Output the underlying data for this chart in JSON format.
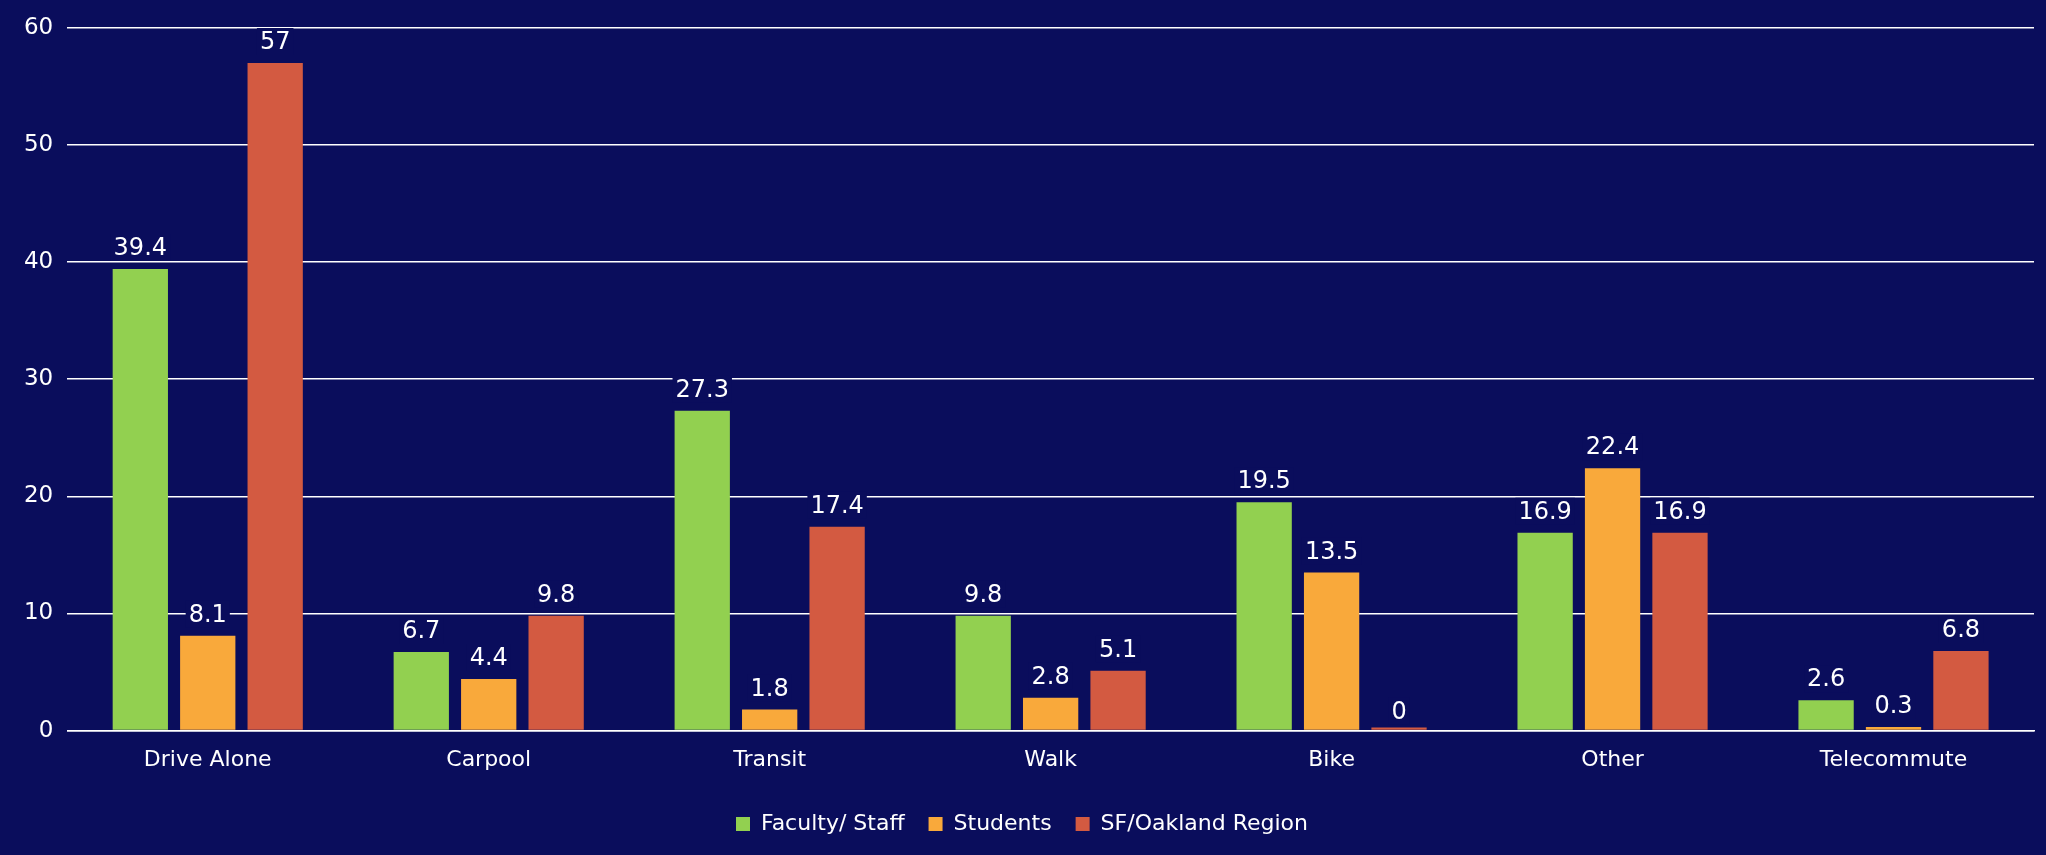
{
  "chart_data": {
    "type": "bar",
    "categories": [
      "Drive Alone",
      "Carpool",
      "Transit",
      "Walk",
      "Bike",
      "Other",
      "Telecommute"
    ],
    "series": [
      {
        "name": "Faculty/ Staff",
        "color": "#92d050",
        "values": [
          39.4,
          6.7,
          27.3,
          9.8,
          19.5,
          16.9,
          2.6
        ]
      },
      {
        "name": "Students",
        "color": "#f9a93b",
        "values": [
          8.1,
          4.4,
          1.8,
          2.8,
          13.5,
          22.4,
          0.3
        ]
      },
      {
        "name": "SF/Oakland Region",
        "color": "#d35a41",
        "values": [
          57,
          9.8,
          17.4,
          5.1,
          0,
          16.9,
          6.8
        ]
      }
    ],
    "ylim": [
      0,
      60
    ],
    "yticks": [
      0,
      10,
      20,
      30,
      40,
      50,
      60
    ],
    "grid": "y",
    "legend": "bottom",
    "data_labels": true
  }
}
